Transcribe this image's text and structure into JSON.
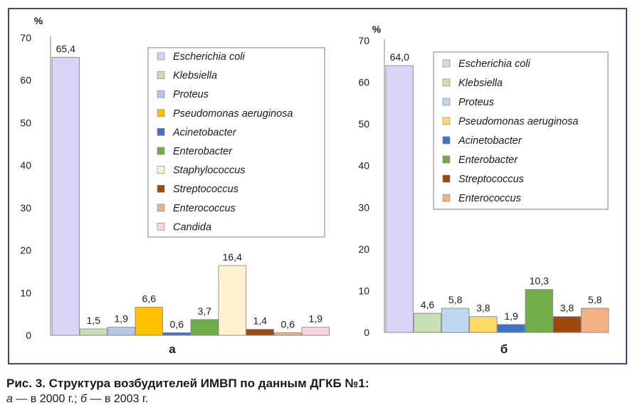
{
  "caption": {
    "title": "Рис. 3. Структура возбудителей ИМВП по данным ДГКБ №1:",
    "part_a_letter": "а",
    "part_a_text": " — в 2000 г.; ",
    "part_b_letter": "б",
    "part_b_text": " — в 2003 г."
  },
  "chart_data": [
    {
      "type": "bar",
      "xlabel": "а",
      "ylabel": "%",
      "ylim": [
        0,
        70
      ],
      "yticks": [
        0,
        10,
        20,
        30,
        40,
        50,
        60,
        70
      ],
      "grid": false,
      "legend_position": "top-right",
      "series": [
        {
          "name": "Escherichia coli",
          "value": 65.4,
          "label": "65,4",
          "color": "#d9d3f6"
        },
        {
          "name": "Klebsiella",
          "value": 1.5,
          "label": "1,5",
          "color": "#c6e0b4"
        },
        {
          "name": "Proteus",
          "value": 1.9,
          "label": "1,9",
          "color": "#b4c7e7"
        },
        {
          "name": "Pseudomonas aeruginosa",
          "value": 6.6,
          "label": "6,6",
          "color": "#ffc000"
        },
        {
          "name": "Acinetobacter",
          "value": 0.6,
          "label": "0,6",
          "color": "#4472c4"
        },
        {
          "name": "Enterobacter",
          "value": 3.7,
          "label": "3,7",
          "color": "#70ad47"
        },
        {
          "name": "Staphylococcus",
          "value": 16.4,
          "label": "16,4",
          "color": "#fff2cc"
        },
        {
          "name": "Streptococcus",
          "value": 1.4,
          "label": "1,4",
          "color": "#9e480e"
        },
        {
          "name": "Enterococcus",
          "value": 0.6,
          "label": "0,6",
          "color": "#f4b183"
        },
        {
          "name": "Candida",
          "value": 1.9,
          "label": "1,9",
          "color": "#fcd5dc"
        }
      ]
    },
    {
      "type": "bar",
      "xlabel": "б",
      "ylabel": "%",
      "ylim": [
        0,
        70
      ],
      "yticks": [
        0,
        10,
        20,
        30,
        40,
        50,
        60,
        70
      ],
      "grid": false,
      "legend_position": "top-right",
      "series": [
        {
          "name": "Escherichia coli",
          "value": 64.0,
          "label": "64,0",
          "color": "#d9d3f6"
        },
        {
          "name": "Klebsiella",
          "value": 4.6,
          "label": "4,6",
          "color": "#c6e0b4"
        },
        {
          "name": "Proteus",
          "value": 5.8,
          "label": "5,8",
          "color": "#bdd7ee"
        },
        {
          "name": "Pseudomonas aeruginosa",
          "value": 3.8,
          "label": "3,8",
          "color": "#ffd966"
        },
        {
          "name": "Acinetobacter",
          "value": 1.9,
          "label": "1,9",
          "color": "#4472c4"
        },
        {
          "name": "Enterobacter",
          "value": 10.3,
          "label": "10,3",
          "color": "#70ad47"
        },
        {
          "name": "Streptococcus",
          "value": 3.8,
          "label": "3,8",
          "color": "#9e480e"
        },
        {
          "name": "Enterococcus",
          "value": 5.8,
          "label": "5,8",
          "color": "#f4b183"
        }
      ]
    }
  ]
}
